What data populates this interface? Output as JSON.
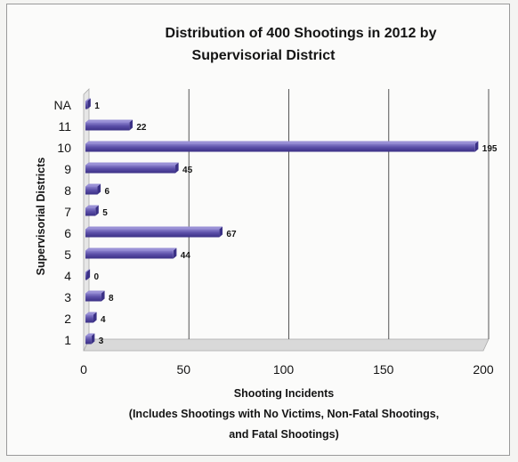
{
  "chart_data": {
    "type": "bar",
    "orientation": "horizontal",
    "title_lines": [
      "Distribution of 400 Shootings in 2012 by",
      "Supervisorial District"
    ],
    "xlabel_lines": [
      "Shooting Incidents",
      "(Includes Shootings with No Victims, Non-Fatal Shootings,",
      "and Fatal Shootings)"
    ],
    "ylabel": "Supervisorial Districts",
    "categories": [
      "1",
      "2",
      "3",
      "4",
      "5",
      "6",
      "7",
      "8",
      "9",
      "10",
      "11",
      "NA"
    ],
    "values": [
      3,
      4,
      8,
      0,
      44,
      67,
      5,
      6,
      45,
      195,
      22,
      1
    ],
    "xlim": [
      0,
      200
    ],
    "xticks": [
      0,
      50,
      100,
      150,
      200
    ],
    "grid": "vertical",
    "bar_color": "#5b4fa8",
    "legend": "none"
  }
}
